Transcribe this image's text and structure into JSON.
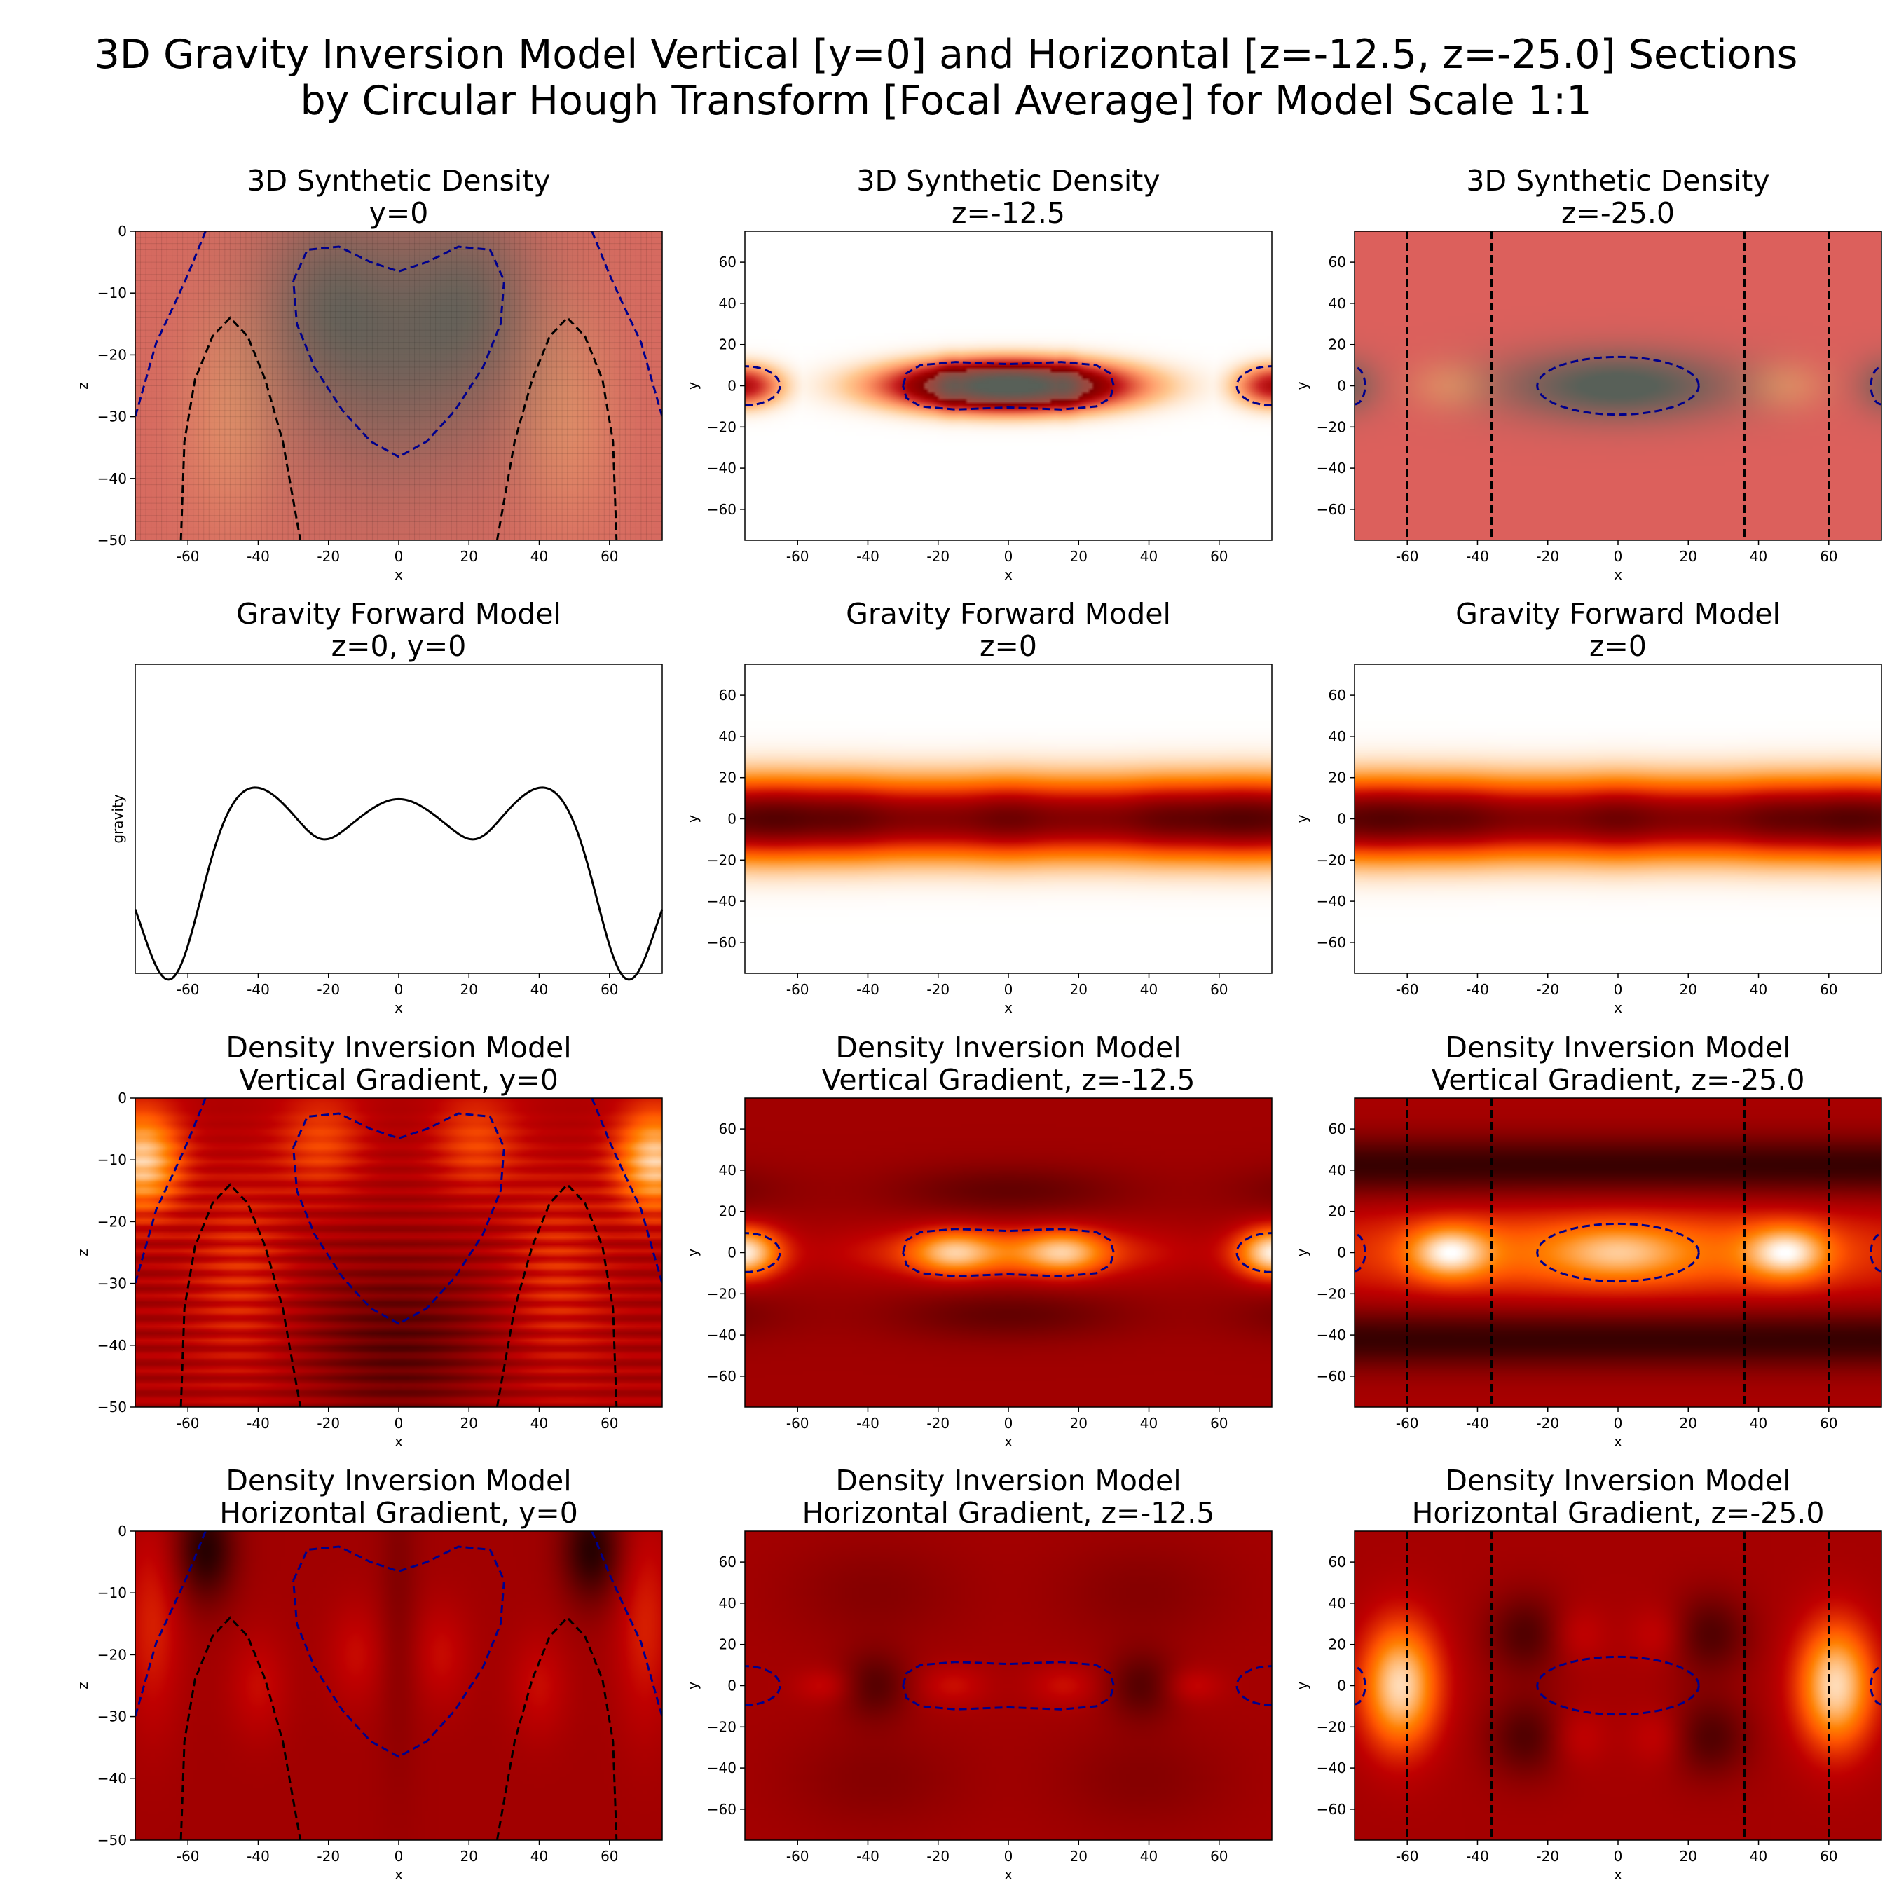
{
  "figure": {
    "title_line1": "3D Gravity Inversion Model Vertical [y=0] and Horizontal [z=-12.5, z=-25.0] Sections",
    "title_line2": "by Circular Hough Transform [Focal Average] for Model Scale 1:1"
  },
  "colors": {
    "contour_positive": "#00008b",
    "contour_negative": "#000000",
    "colormap": "gist_heat_r",
    "forward_line": "#000000"
  },
  "chart_data": [
    {
      "id": "p00",
      "type": "heatmap",
      "title": "3D Synthetic Density",
      "subtitle": "y=0",
      "xlabel": "x",
      "ylabel": "z",
      "xlim": [
        -75,
        75
      ],
      "ylim": [
        -50,
        0
      ],
      "xticks": [
        -60,
        -40,
        -20,
        0,
        20,
        40,
        60
      ],
      "yticks": [
        0,
        -10,
        -20,
        -30,
        -40,
        -50
      ],
      "field": "vertical_density",
      "grid_mesh": true,
      "contours": true
    },
    {
      "id": "p01",
      "type": "heatmap",
      "title": "3D Synthetic Density",
      "subtitle": "z=-12.5",
      "xlabel": "x",
      "ylabel": "y",
      "xlim": [
        -75,
        75
      ],
      "ylim": [
        -75,
        75
      ],
      "xticks": [
        -60,
        -40,
        -20,
        0,
        20,
        40,
        60
      ],
      "yticks": [
        60,
        40,
        20,
        0,
        -20,
        -40,
        -60
      ],
      "field": "horizontal_density_shallow",
      "contours": true,
      "vertical_lines": []
    },
    {
      "id": "p02",
      "type": "heatmap",
      "title": "3D Synthetic Density",
      "subtitle": "z=-25.0",
      "xlabel": "x",
      "ylabel": "y",
      "xlim": [
        -75,
        75
      ],
      "ylim": [
        -75,
        75
      ],
      "xticks": [
        -60,
        -40,
        -20,
        0,
        20,
        40,
        60
      ],
      "yticks": [
        60,
        40,
        20,
        0,
        -20,
        -40,
        -60
      ],
      "field": "horizontal_density_deep",
      "contours": true,
      "vertical_lines": [
        -60,
        -36,
        36,
        60
      ]
    },
    {
      "id": "p10",
      "type": "line",
      "title": "Gravity Forward Model",
      "subtitle": "z=0, y=0",
      "xlabel": "x",
      "ylabel": "gravity",
      "xlim": [
        -75,
        75
      ],
      "ylim": [
        -1.0,
        1.2
      ],
      "xticks": [
        -60,
        -40,
        -20,
        0,
        20,
        40,
        60
      ],
      "yticks": [],
      "x": [
        -75,
        -65,
        -42,
        -22,
        0,
        22,
        42,
        65,
        75
      ],
      "y": [
        -0.55,
        -1.0,
        0.15,
        -0.45,
        0.05,
        -0.45,
        0.15,
        -1.0,
        -0.55
      ]
    },
    {
      "id": "p11",
      "type": "heatmap",
      "title": "Gravity Forward Model",
      "subtitle": "z=0",
      "xlabel": "x",
      "ylabel": "y",
      "xlim": [
        -75,
        75
      ],
      "ylim": [
        -75,
        75
      ],
      "xticks": [
        -60,
        -40,
        -20,
        0,
        20,
        40,
        60
      ],
      "yticks": [
        60,
        40,
        20,
        0,
        -20,
        -40,
        -60
      ],
      "field": "gravity_map",
      "contours": false
    },
    {
      "id": "p12",
      "type": "heatmap",
      "title": "Gravity Forward Model",
      "subtitle": "z=0",
      "xlabel": "x",
      "ylabel": "y",
      "xlim": [
        -75,
        75
      ],
      "ylim": [
        -75,
        75
      ],
      "xticks": [
        -60,
        -40,
        -20,
        0,
        20,
        40,
        60
      ],
      "yticks": [
        60,
        40,
        20,
        0,
        -20,
        -40,
        -60
      ],
      "field": "gravity_map",
      "contours": false
    },
    {
      "id": "p20",
      "type": "heatmap",
      "title": "Density Inversion Model",
      "subtitle": "Vertical Gradient, y=0",
      "xlabel": "x",
      "ylabel": "z",
      "xlim": [
        -75,
        75
      ],
      "ylim": [
        -50,
        0
      ],
      "xticks": [
        -60,
        -40,
        -20,
        0,
        20,
        40,
        60
      ],
      "yticks": [
        0,
        -10,
        -20,
        -30,
        -40,
        -50
      ],
      "field": "vertical_gradient_section",
      "contours": true
    },
    {
      "id": "p21",
      "type": "heatmap",
      "title": "Density Inversion Model",
      "subtitle": "Vertical Gradient, z=-12.5",
      "xlabel": "x",
      "ylabel": "y",
      "xlim": [
        -75,
        75
      ],
      "ylim": [
        -75,
        75
      ],
      "xticks": [
        -60,
        -40,
        -20,
        0,
        20,
        40,
        60
      ],
      "yticks": [
        60,
        40,
        20,
        0,
        -20,
        -40,
        -60
      ],
      "field": "vertical_gradient_shallow",
      "contours": true,
      "vertical_lines": []
    },
    {
      "id": "p22",
      "type": "heatmap",
      "title": "Density Inversion Model",
      "subtitle": "Vertical Gradient, z=-25.0",
      "xlabel": "x",
      "ylabel": "y",
      "xlim": [
        -75,
        75
      ],
      "ylim": [
        -75,
        75
      ],
      "xticks": [
        -60,
        -40,
        -20,
        0,
        20,
        40,
        60
      ],
      "yticks": [
        60,
        40,
        20,
        0,
        -20,
        -40,
        -60
      ],
      "field": "vertical_gradient_deep",
      "contours": true,
      "vertical_lines": [
        -60,
        -36,
        36,
        60
      ]
    },
    {
      "id": "p30",
      "type": "heatmap",
      "title": "Density Inversion Model",
      "subtitle": "Horizontal Gradient, y=0",
      "xlabel": "x",
      "ylabel": "z",
      "xlim": [
        -75,
        75
      ],
      "ylim": [
        -50,
        0
      ],
      "xticks": [
        -60,
        -40,
        -20,
        0,
        20,
        40,
        60
      ],
      "yticks": [
        0,
        -10,
        -20,
        -30,
        -40,
        -50
      ],
      "field": "horizontal_gradient_section",
      "contours": true
    },
    {
      "id": "p31",
      "type": "heatmap",
      "title": "Density Inversion Model",
      "subtitle": "Horizontal Gradient, z=-12.5",
      "xlabel": "x",
      "ylabel": "y",
      "xlim": [
        -75,
        75
      ],
      "ylim": [
        -75,
        75
      ],
      "xticks": [
        -60,
        -40,
        -20,
        0,
        20,
        40,
        60
      ],
      "yticks": [
        60,
        40,
        20,
        0,
        -20,
        -40,
        -60
      ],
      "field": "horizontal_gradient_shallow",
      "contours": true,
      "vertical_lines": []
    },
    {
      "id": "p32",
      "type": "heatmap",
      "title": "Density Inversion Model",
      "subtitle": "Horizontal Gradient, z=-25.0",
      "xlabel": "x",
      "ylabel": "y",
      "xlim": [
        -75,
        75
      ],
      "ylim": [
        -75,
        75
      ],
      "xticks": [
        -60,
        -40,
        -20,
        0,
        20,
        40,
        60
      ],
      "yticks": [
        60,
        40,
        20,
        0,
        -20,
        -40,
        -60
      ],
      "field": "horizontal_gradient_deep",
      "contours": true,
      "vertical_lines": [
        -60,
        -36,
        36,
        60
      ]
    }
  ]
}
